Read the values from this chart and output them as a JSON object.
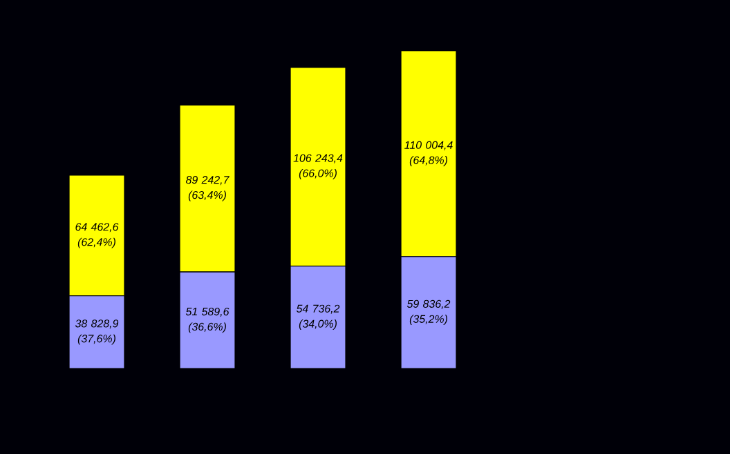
{
  "chart_data": {
    "type": "bar",
    "stacked": true,
    "categories": [
      null,
      null,
      null,
      null
    ],
    "series": [
      {
        "color": "#9999ff",
        "values": [
          38828.9,
          51589.6,
          54736.2,
          59836.2
        ],
        "value_labels": [
          "38 828,9 (37,6%)",
          "51 589,6 (36,6%)",
          "54 736,2 (34,0%)",
          "59 836,2 (35,2%)"
        ]
      },
      {
        "color": "#ffff00",
        "values": [
          64462.6,
          89242.7,
          106243.4,
          110004.4
        ],
        "value_labels": [
          "64 462,6 (62,4%)",
          "89 242,7 (63,4%)",
          "106 243,4 (66,0%)",
          "110 004,4 (64,8%)"
        ]
      }
    ]
  }
}
